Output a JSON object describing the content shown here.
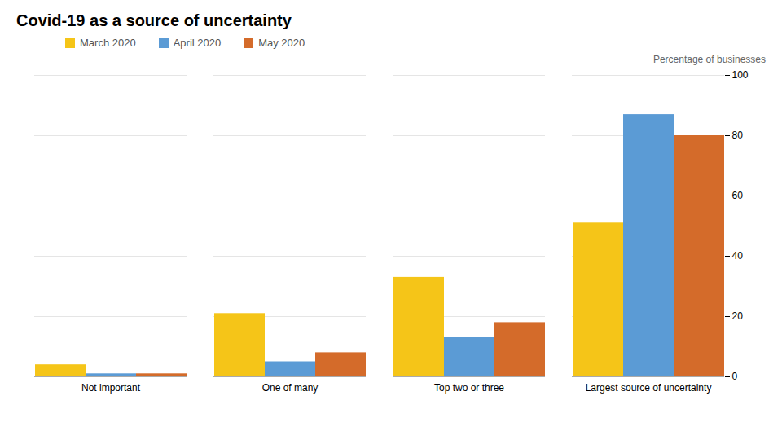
{
  "chart_data": {
    "type": "bar",
    "title": "Covid-19 as a source of uncertainty",
    "ylabel": "Percentage of businesses",
    "categories": [
      "Not important",
      "One of many",
      "Top two or three",
      "Largest source of uncertainty"
    ],
    "series": [
      {
        "name": "March 2020",
        "color": "#F5C518",
        "values": [
          4,
          21,
          33,
          51
        ]
      },
      {
        "name": "April 2020",
        "color": "#5B9BD5",
        "values": [
          1,
          5,
          13,
          87
        ]
      },
      {
        "name": "May 2020",
        "color": "#D46B2A",
        "values": [
          1,
          8,
          18,
          80
        ]
      }
    ],
    "ylim": [
      0,
      100
    ],
    "yticks": [
      0,
      20,
      40,
      60,
      80,
      100
    ],
    "grid": true
  }
}
